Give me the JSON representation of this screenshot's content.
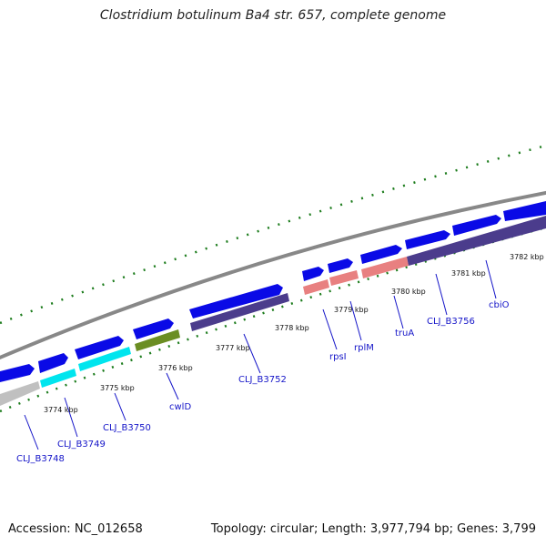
{
  "title": "Clostridium botulinum Ba4 str. 657, complete genome",
  "footer": {
    "accession": "Accession: NC_012658",
    "stats": "Topology: circular; Length: 3,977,794 bp; Genes: 3,799"
  },
  "scale_labels": [
    "3774 kbp",
    "3775 kbp",
    "3776 kbp",
    "3777 kbp",
    "3778 kbp",
    "3779 kbp",
    "3780 kbp",
    "3781 kbp",
    "3782 kbp"
  ],
  "gene_labels": [
    "CLJ_B3748",
    "CLJ_B3749",
    "CLJ_B3750",
    "cwlD",
    "CLJ_B3752",
    "rpsI",
    "rplM",
    "truA",
    "CLJ_B3756",
    "cbiO"
  ],
  "colors": {
    "cds_forward": "#0a0ae6",
    "cds_highlight": "#00e5ee",
    "cds_misc": "#6b8e23",
    "ribosomal": "#e88080",
    "operon": "#4b3c8c",
    "other": "#c0c0c0",
    "backbone": "#888888",
    "tick_marks": "#1c7c1c",
    "labels": "#1414c8"
  }
}
